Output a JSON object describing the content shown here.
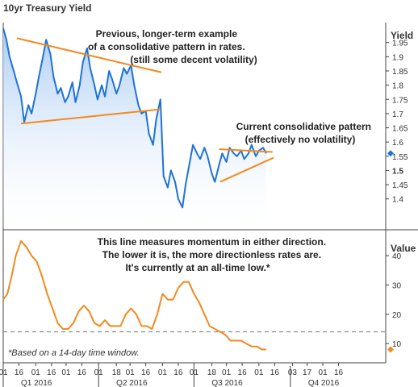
{
  "chart_data": [
    {
      "type": "area",
      "title": "10yr Treasury Yield",
      "ylabel": "Yield",
      "ylim": [
        1.3,
        2.02
      ],
      "yticks": [
        "1.95",
        "1.9",
        "1.85",
        "1.8",
        "1.75",
        "1.7",
        "1.65",
        "1.6",
        "1.55",
        "1.5",
        "1.45",
        "1.4"
      ],
      "current_value": 1.56,
      "colors": {
        "line": "#1e73d8",
        "fill_top": "#a9cbf3",
        "fill_bottom": "#ffffff",
        "trend": "#f28a1e",
        "marker": "#1e73d8"
      },
      "series": [
        {
          "x": [
            "2016-01-01",
            "2016-01-04",
            "2016-01-07",
            "2016-01-11",
            "2016-01-14",
            "2016-01-18",
            "2016-01-21",
            "2016-01-25",
            "2016-01-28",
            "2016-02-01",
            "2016-02-04",
            "2016-02-08",
            "2016-02-11",
            "2016-02-15",
            "2016-02-18",
            "2016-02-22",
            "2016-02-25",
            "2016-02-29",
            "2016-03-03",
            "2016-03-07",
            "2016-03-10",
            "2016-03-14",
            "2016-03-17",
            "2016-03-21",
            "2016-03-24",
            "2016-03-28",
            "2016-03-31",
            "2016-04-04",
            "2016-04-07",
            "2016-04-11",
            "2016-04-14",
            "2016-04-18",
            "2016-04-21",
            "2016-04-25",
            "2016-04-28",
            "2016-05-02",
            "2016-05-05",
            "2016-05-09",
            "2016-05-12",
            "2016-05-16",
            "2016-05-19",
            "2016-05-23",
            "2016-05-26",
            "2016-05-30",
            "2016-06-02",
            "2016-06-06",
            "2016-06-09",
            "2016-06-13",
            "2016-06-16",
            "2016-06-20",
            "2016-06-23",
            "2016-06-27",
            "2016-06-30",
            "2016-07-04",
            "2016-07-07",
            "2016-07-11",
            "2016-07-14",
            "2016-07-18",
            "2016-07-21",
            "2016-07-25",
            "2016-07-28",
            "2016-08-01",
            "2016-08-04",
            "2016-08-08",
            "2016-08-11",
            "2016-08-15",
            "2016-08-18",
            "2016-08-22",
            "2016-08-25",
            "2016-08-29",
            "2016-09-01",
            "2016-09-05",
            "2016-09-08"
          ],
          "y": [
            2.0,
            1.96,
            1.9,
            1.85,
            1.81,
            1.76,
            1.67,
            1.73,
            1.7,
            1.77,
            1.83,
            1.9,
            1.96,
            1.91,
            1.83,
            1.77,
            1.79,
            1.74,
            1.76,
            1.81,
            1.74,
            1.8,
            1.88,
            1.93,
            1.86,
            1.8,
            1.75,
            1.8,
            1.76,
            1.85,
            1.82,
            1.77,
            1.8,
            1.86,
            1.84,
            1.87,
            1.8,
            1.73,
            1.7,
            1.71,
            1.63,
            1.59,
            1.68,
            1.75,
            1.48,
            1.44,
            1.5,
            1.46,
            1.4,
            1.37,
            1.45,
            1.53,
            1.59,
            1.56,
            1.54,
            1.58,
            1.55,
            1.49,
            1.46,
            1.52,
            1.56,
            1.53,
            1.58,
            1.56,
            1.55,
            1.57,
            1.54,
            1.56,
            1.59,
            1.55,
            1.57,
            1.58,
            1.56
          ]
        }
      ],
      "annotations": [
        {
          "lines": [
            "Previous, longer-term example",
            "of a consolidative pattern in rates.",
            "(still some decent volatility)"
          ]
        },
        {
          "lines": [
            "Current consolidative pattern",
            "(effectively no volatility)"
          ]
        }
      ],
      "trendlines": [
        {
          "from": [
            "2016-01-14",
            1.965
          ],
          "to": [
            "2016-05-31",
            1.845
          ]
        },
        {
          "from": [
            "2016-01-18",
            1.665
          ],
          "to": [
            "2016-05-30",
            1.715
          ]
        },
        {
          "from": [
            "2016-07-25",
            1.575
          ],
          "to": [
            "2016-09-14",
            1.565
          ]
        },
        {
          "from": [
            "2016-07-26",
            1.46
          ],
          "to": [
            "2016-09-15",
            1.545
          ]
        }
      ]
    },
    {
      "type": "line",
      "ylabel": "Value",
      "ylim": [
        4,
        48
      ],
      "yticks": [
        "40",
        "30",
        "20",
        "10"
      ],
      "threshold": 14,
      "current_value": 8,
      "colors": {
        "line": "#f28a1e",
        "threshold": "#777777",
        "marker": "#f28a1e"
      },
      "annotation": [
        "This line measures momentum in either direction.",
        "The lower it is, the more directionless rates are.",
        "It's currently at an all-time low.*"
      ],
      "footnote": "*Based on a 14-day time window.",
      "series": [
        {
          "x": [
            "2016-01-01",
            "2016-01-05",
            "2016-01-09",
            "2016-01-13",
            "2016-01-18",
            "2016-01-23",
            "2016-01-28",
            "2016-02-02",
            "2016-02-07",
            "2016-02-12",
            "2016-02-17",
            "2016-02-22",
            "2016-02-27",
            "2016-03-03",
            "2016-03-08",
            "2016-03-13",
            "2016-03-18",
            "2016-03-23",
            "2016-03-28",
            "2016-04-02",
            "2016-04-07",
            "2016-04-12",
            "2016-04-17",
            "2016-04-22",
            "2016-04-27",
            "2016-05-02",
            "2016-05-07",
            "2016-05-12",
            "2016-05-17",
            "2016-05-22",
            "2016-05-27",
            "2016-06-01",
            "2016-06-06",
            "2016-06-11",
            "2016-06-16",
            "2016-06-21",
            "2016-06-26",
            "2016-07-01",
            "2016-07-06",
            "2016-07-11",
            "2016-07-16",
            "2016-07-21",
            "2016-07-26",
            "2016-07-31",
            "2016-08-05",
            "2016-08-10",
            "2016-08-15",
            "2016-08-20",
            "2016-08-25",
            "2016-08-30",
            "2016-09-04",
            "2016-09-08"
          ],
          "y": [
            25,
            27,
            33,
            40,
            45,
            43,
            40,
            38,
            33,
            27,
            22,
            17,
            15,
            15,
            17,
            21,
            23,
            21,
            17,
            16,
            18,
            16,
            16,
            16,
            20,
            22,
            20,
            16,
            16,
            15,
            20,
            27,
            25,
            25,
            29,
            31,
            31,
            27,
            24,
            20,
            16,
            15,
            14,
            13,
            11,
            11,
            11,
            10,
            9,
            9,
            8,
            8
          ]
        }
      ]
    }
  ],
  "x_axis": {
    "day_labels": [
      "01",
      "16",
      "01",
      "16",
      "01",
      "16",
      "01",
      "18",
      "01",
      "16",
      "01",
      "16",
      "01",
      "18",
      "01",
      "16",
      "01",
      "16",
      "03",
      "17",
      "01",
      "16"
    ],
    "quarters": [
      "Q1 2016",
      "Q2 2016",
      "Q3 2016",
      "Q4 2016"
    ]
  }
}
